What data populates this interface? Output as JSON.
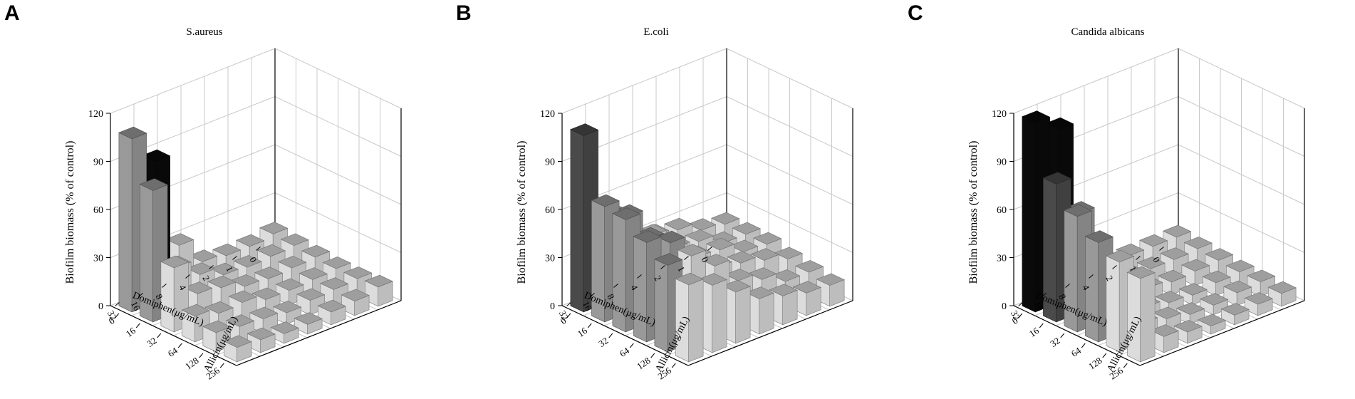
{
  "panels": [
    {
      "letter": "A"
    },
    {
      "letter": "B"
    },
    {
      "letter": "C"
    }
  ],
  "colors": {
    "background": "#ffffff",
    "grid": "#c8c8c8",
    "axis": "#000000",
    "bar_light": "#dcdcdc",
    "bar_medium": "#999999",
    "bar_dark": "#4a4a4a",
    "bar_black": "#0a0a0a"
  },
  "chart_data": [
    {
      "type": "bar3d",
      "title": "S.aureus",
      "zlabel": "Biofilm biomass (% of control)",
      "xlabel": "Domiphen(μg/mL)",
      "ylabel": "Allicin(μg/mL)",
      "x_categories": [
        "0",
        "1",
        "2",
        "4",
        "8",
        "16",
        "32"
      ],
      "y_categories": [
        "0",
        "16",
        "32",
        "64",
        "128",
        "256"
      ],
      "zlim": [
        0,
        120
      ],
      "zticks": [
        0,
        30,
        60,
        90,
        120
      ],
      "values": [
        [
          14,
          13,
          12,
          11,
          11,
          12
        ],
        [
          12,
          12,
          11,
          10,
          10,
          9
        ],
        [
          12,
          11,
          10,
          9,
          9,
          8
        ],
        [
          14,
          12,
          11,
          9,
          7,
          6
        ],
        [
          30,
          18,
          16,
          13,
          9,
          6
        ],
        [
          88,
          28,
          18,
          12,
          10,
          8
        ],
        [
          108,
          82,
          40,
          16,
          12,
          9
        ]
      ],
      "intensity": [
        [
          0,
          0,
          0,
          0,
          0,
          0
        ],
        [
          0,
          0,
          0,
          0,
          0,
          0
        ],
        [
          0,
          0,
          0,
          0,
          0,
          0
        ],
        [
          0,
          0,
          0,
          0,
          0,
          0
        ],
        [
          0,
          0,
          0,
          0,
          0,
          0
        ],
        [
          3,
          0,
          0,
          0,
          0,
          0
        ],
        [
          1,
          1,
          0,
          0,
          0,
          0
        ]
      ]
    },
    {
      "type": "bar3d",
      "title": "E.coli",
      "zlabel": "Biofilm biomass (% of control)",
      "xlabel": "Domiphen(μg/mL)",
      "ylabel": "Allicin(μg/mL)",
      "x_categories": [
        "0",
        "1",
        "2",
        "4",
        "8",
        "16",
        "32"
      ],
      "y_categories": [
        "0",
        "16",
        "32",
        "64",
        "128",
        "256"
      ],
      "zlim": [
        0,
        120
      ],
      "zticks": [
        0,
        30,
        60,
        90,
        120
      ],
      "values": [
        [
          20,
          20,
          20,
          17,
          15,
          13
        ],
        [
          22,
          20,
          21,
          22,
          15,
          14
        ],
        [
          28,
          27,
          28,
          26,
          22,
          18
        ],
        [
          30,
          29,
          29,
          29,
          27,
          22
        ],
        [
          36,
          42,
          40,
          38,
          42,
          32
        ],
        [
          56,
          60,
          52,
          56,
          54,
          42
        ],
        [
          110,
          72,
          70,
          62,
          54,
          48
        ]
      ],
      "intensity": [
        [
          0,
          0,
          0,
          0,
          0,
          0
        ],
        [
          0,
          0,
          0,
          0,
          0,
          0
        ],
        [
          0,
          0,
          0,
          0,
          0,
          0
        ],
        [
          0,
          0,
          0,
          0,
          0,
          0
        ],
        [
          0,
          0,
          0,
          0,
          0,
          0
        ],
        [
          0,
          1,
          1,
          1,
          0,
          0
        ],
        [
          2,
          1,
          1,
          1,
          1,
          0
        ]
      ]
    },
    {
      "type": "bar3d",
      "title": "Candida albicans",
      "zlabel": "Biofilm biomass (% of control)",
      "xlabel": "Domiphen(μg/mL)",
      "ylabel": "Allicin(μg/mL)",
      "x_categories": [
        "0",
        "1",
        "2",
        "4",
        "8",
        "16",
        "32"
      ],
      "y_categories": [
        "0",
        "16",
        "32",
        "64",
        "128",
        "256"
      ],
      "zlim": [
        0,
        120
      ],
      "zticks": [
        0,
        30,
        60,
        90,
        120
      ],
      "values": [
        [
          12,
          11,
          10,
          9,
          9,
          8
        ],
        [
          12,
          10,
          9,
          8,
          8,
          7
        ],
        [
          12,
          10,
          8,
          6,
          6,
          6
        ],
        [
          14,
          12,
          10,
          7,
          6,
          5
        ],
        [
          34,
          16,
          12,
          10,
          9,
          7
        ],
        [
          108,
          62,
          34,
          14,
          12,
          10
        ],
        [
          118,
          86,
          72,
          62,
          56,
          52
        ]
      ],
      "intensity": [
        [
          0,
          0,
          0,
          0,
          0,
          0
        ],
        [
          0,
          0,
          0,
          0,
          0,
          0
        ],
        [
          0,
          0,
          0,
          0,
          0,
          0
        ],
        [
          0,
          0,
          0,
          0,
          0,
          0
        ],
        [
          0,
          0,
          0,
          0,
          0,
          0
        ],
        [
          3,
          1,
          0,
          0,
          0,
          0
        ],
        [
          3,
          2,
          1,
          1,
          0,
          0
        ]
      ]
    }
  ]
}
